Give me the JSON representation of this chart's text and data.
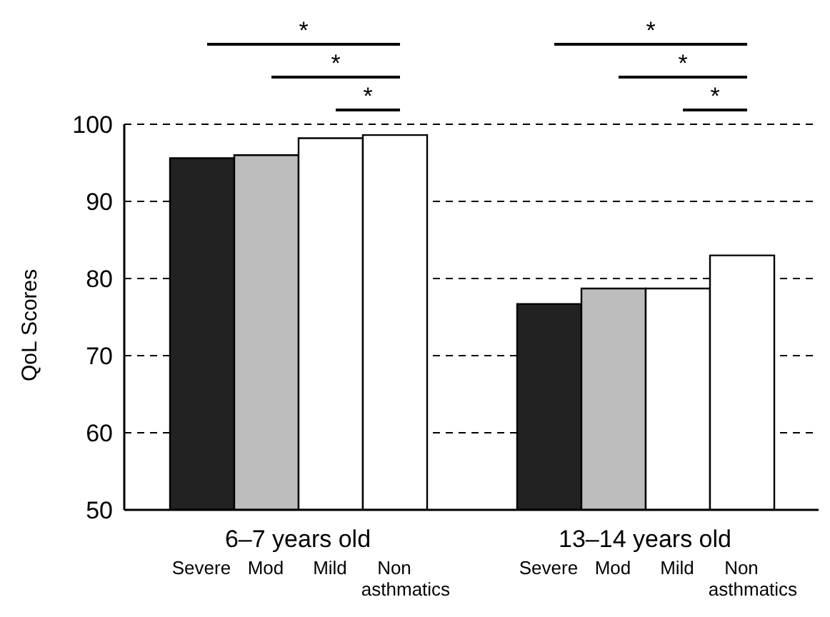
{
  "chart_data": {
    "type": "bar",
    "ylabel": "QoL Scores",
    "categories": [
      "6–7 years old",
      "13–14 years old"
    ],
    "series": [
      {
        "name": "Severe",
        "color": "#222222",
        "values": [
          95.6,
          76.7
        ]
      },
      {
        "name": "Mod",
        "color": "#bdbdbd",
        "values": [
          96.0,
          78.7
        ]
      },
      {
        "name": "Mild",
        "color": "#ffffff",
        "values": [
          98.2,
          78.7
        ]
      },
      {
        "name": "Non asthmatics",
        "color": "#ffffff",
        "values": [
          98.6,
          83.0
        ]
      }
    ],
    "ylim": [
      50,
      100
    ],
    "yticks": [
      50,
      60,
      70,
      80,
      90,
      100
    ],
    "grid": "y",
    "legend": false,
    "annotations": [
      "*",
      "*",
      "*",
      "*",
      "*",
      "*"
    ]
  }
}
